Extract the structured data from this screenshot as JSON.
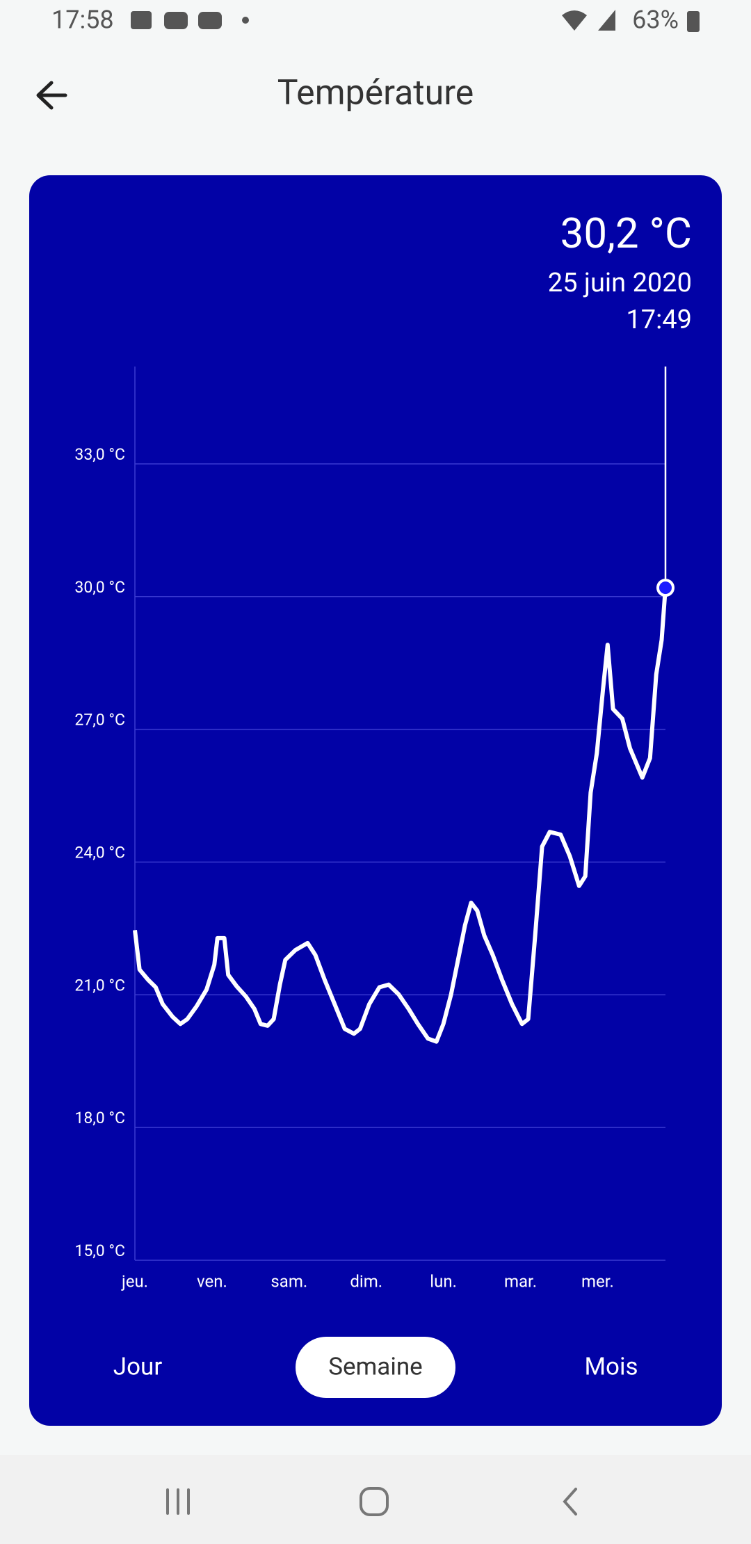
{
  "status_bar": {
    "time": "17:58",
    "battery": "63%"
  },
  "header": {
    "title": "Température"
  },
  "readout": {
    "value": "30,2 °C",
    "date": "25 juin 2020",
    "time": "17:49"
  },
  "chart_data": {
    "type": "line",
    "color": "#ffffff",
    "x": [
      0,
      0.06,
      0.17,
      0.27,
      0.36,
      0.49,
      0.59,
      0.68,
      0.8,
      0.93,
      1.03,
      1.07,
      1.16,
      1.21,
      1.32,
      1.44,
      1.55,
      1.63,
      1.72,
      1.8,
      1.88,
      1.95,
      2.08,
      2.24,
      2.34,
      2.46,
      2.59,
      2.72,
      2.84,
      2.92,
      3.04,
      3.17,
      3.29,
      3.42,
      3.55,
      3.67,
      3.8,
      3.91,
      4.0,
      4.1,
      4.19,
      4.28,
      4.36,
      4.44,
      4.53,
      4.64,
      4.76,
      4.89,
      5.02,
      5.1,
      5.19,
      5.28,
      5.38,
      5.52,
      5.64,
      5.76,
      5.84,
      5.91,
      5.99,
      6.07,
      6.13,
      6.2,
      6.32,
      6.42,
      6.58,
      6.68,
      6.76,
      6.83,
      6.88
    ],
    "values": [
      22.46,
      21.57,
      21.34,
      21.17,
      20.79,
      20.5,
      20.34,
      20.45,
      20.74,
      21.12,
      21.68,
      22.28,
      22.28,
      21.45,
      21.19,
      20.96,
      20.68,
      20.34,
      20.3,
      20.45,
      21.23,
      21.79,
      22.01,
      22.17,
      21.9,
      21.34,
      20.79,
      20.23,
      20.12,
      20.23,
      20.79,
      21.17,
      21.23,
      21.01,
      20.68,
      20.34,
      20.01,
      19.94,
      20.34,
      21.01,
      21.79,
      22.57,
      23.08,
      22.9,
      22.34,
      21.9,
      21.34,
      20.79,
      20.34,
      20.45,
      22.34,
      24.35,
      24.68,
      24.62,
      24.13,
      23.46,
      23.68,
      25.57,
      26.46,
      27.91,
      28.91,
      27.46,
      27.24,
      26.57,
      25.91,
      26.35,
      28.24,
      29.02,
      30.2
    ],
    "xlim": [
      0,
      6.88
    ],
    "xticks": [
      {
        "value": 0,
        "label": "jeu."
      },
      {
        "value": 1,
        "label": "ven."
      },
      {
        "value": 2,
        "label": "sam."
      },
      {
        "value": 3,
        "label": "dim."
      },
      {
        "value": 4,
        "label": "lun."
      },
      {
        "value": 5,
        "label": "mar."
      },
      {
        "value": 6,
        "label": "mer."
      }
    ],
    "ylim": [
      15,
      35.2
    ],
    "yticks": [
      {
        "value": 15,
        "label": "15,0 °C"
      },
      {
        "value": 18,
        "label": "18,0 °C"
      },
      {
        "value": 21,
        "label": "21,0 °C"
      },
      {
        "value": 24,
        "label": "24,0 °C"
      },
      {
        "value": 27,
        "label": "27,0 °C"
      },
      {
        "value": 30,
        "label": "30,0 °C"
      },
      {
        "value": 33,
        "label": "33,0 °C"
      }
    ],
    "grid": true
  },
  "range_tabs": {
    "options": [
      "Jour",
      "Semaine",
      "Mois"
    ],
    "selected": 1
  }
}
